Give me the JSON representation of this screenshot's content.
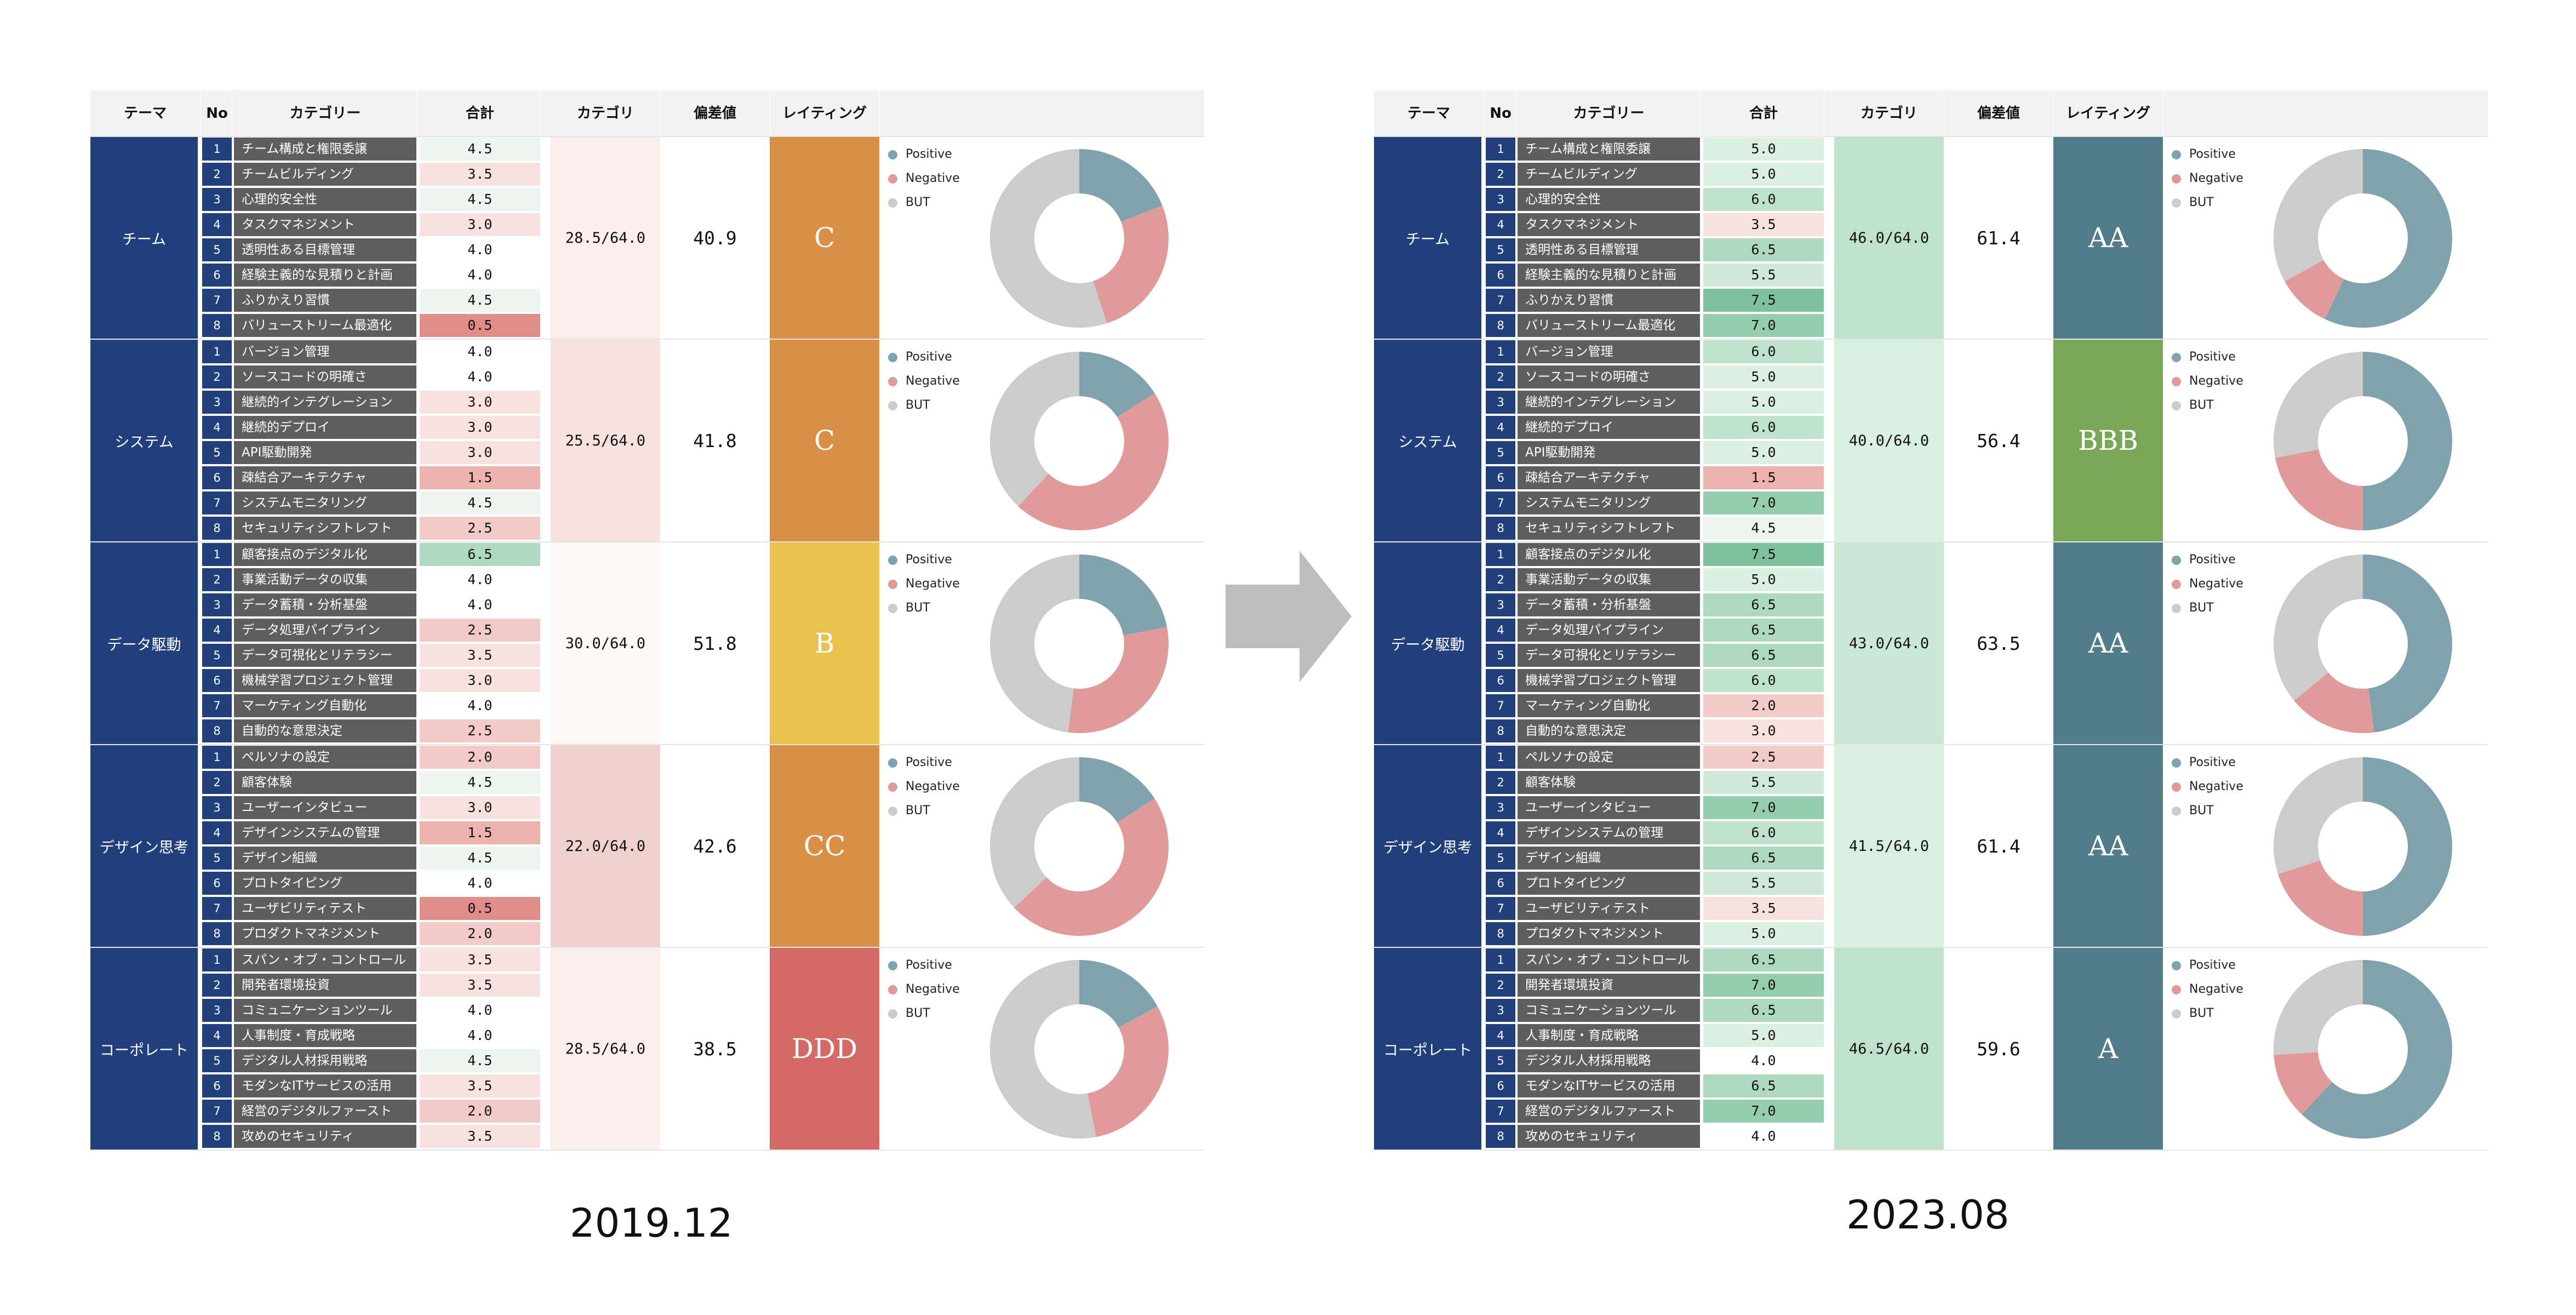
{
  "headers": [
    "テーマ",
    "No",
    "カテゴリー",
    "合計",
    "カテゴリ",
    "偏差値",
    "レイティング"
  ],
  "legend": [
    {
      "label": "Positive",
      "color": "#7fa2ad"
    },
    {
      "label": "Negative",
      "color": "#e09a99"
    },
    {
      "label": "BUT",
      "color": "#cccccc"
    }
  ],
  "colors": {
    "theme": "#213f7b",
    "category_bg": "#5e5e5e",
    "positive": "#7fa2ad",
    "negative": "#e09a99",
    "but": "#cccccc"
  },
  "chart_data": [
    {
      "type": "table",
      "label": "2019.12",
      "groups": [
        {
          "theme": "チーム",
          "category_total": "28.5/64.0",
          "deviation": "40.9",
          "rating": "C",
          "rating_color": "#d98f47",
          "items": [
            {
              "no": "1",
              "name": "チーム構成と権限委譲",
              "score": "4.5"
            },
            {
              "no": "2",
              "name": "チームビルディング",
              "score": "3.5"
            },
            {
              "no": "3",
              "name": "心理的安全性",
              "score": "4.5"
            },
            {
              "no": "4",
              "name": "タスクマネジメント",
              "score": "3.0"
            },
            {
              "no": "5",
              "name": "透明性ある目標管理",
              "score": "4.0"
            },
            {
              "no": "6",
              "name": "経験主義的な見積りと計画",
              "score": "4.0"
            },
            {
              "no": "7",
              "name": "ふりかえり習慣",
              "score": "4.5"
            },
            {
              "no": "8",
              "name": "バリューストリーム最適化",
              "score": "0.5"
            }
          ],
          "donut": {
            "positive": 0.19,
            "negative": 0.26,
            "but": 0.55
          }
        },
        {
          "theme": "システム",
          "category_total": "25.5/64.0",
          "deviation": "41.8",
          "rating": "C",
          "rating_color": "#d98f47",
          "items": [
            {
              "no": "1",
              "name": "バージョン管理",
              "score": "4.0"
            },
            {
              "no": "2",
              "name": "ソースコードの明確さ",
              "score": "4.0"
            },
            {
              "no": "3",
              "name": "継続的インテグレーション",
              "score": "3.0"
            },
            {
              "no": "4",
              "name": "継続的デプロイ",
              "score": "3.0"
            },
            {
              "no": "5",
              "name": "API駆動開発",
              "score": "3.0"
            },
            {
              "no": "6",
              "name": "疎結合アーキテクチャ",
              "score": "1.5"
            },
            {
              "no": "7",
              "name": "システムモニタリング",
              "score": "4.5"
            },
            {
              "no": "8",
              "name": "セキュリティシフトレフト",
              "score": "2.5"
            }
          ],
          "donut": {
            "positive": 0.16,
            "negative": 0.46,
            "but": 0.38
          }
        },
        {
          "theme": "データ駆動",
          "category_total": "30.0/64.0",
          "deviation": "51.8",
          "rating": "B",
          "rating_color": "#e8c24d",
          "items": [
            {
              "no": "1",
              "name": "顧客接点のデジタル化",
              "score": "6.5"
            },
            {
              "no": "2",
              "name": "事業活動データの収集",
              "score": "4.0"
            },
            {
              "no": "3",
              "name": "データ蓄積・分析基盤",
              "score": "4.0"
            },
            {
              "no": "4",
              "name": "データ処理パイプライン",
              "score": "2.5"
            },
            {
              "no": "5",
              "name": "データ可視化とリテラシー",
              "score": "3.5"
            },
            {
              "no": "6",
              "name": "機械学習プロジェクト管理",
              "score": "3.0"
            },
            {
              "no": "7",
              "name": "マーケティング自動化",
              "score": "4.0"
            },
            {
              "no": "8",
              "name": "自動的な意思決定",
              "score": "2.5"
            }
          ],
          "donut": {
            "positive": 0.22,
            "negative": 0.3,
            "but": 0.48
          }
        },
        {
          "theme": "デザイン思考",
          "category_total": "22.0/64.0",
          "deviation": "42.6",
          "rating": "CC",
          "rating_color": "#d98f47",
          "items": [
            {
              "no": "1",
              "name": "ペルソナの設定",
              "score": "2.0"
            },
            {
              "no": "2",
              "name": "顧客体験",
              "score": "4.5"
            },
            {
              "no": "3",
              "name": "ユーザーインタビュー",
              "score": "3.0"
            },
            {
              "no": "4",
              "name": "デザインシステムの管理",
              "score": "1.5"
            },
            {
              "no": "5",
              "name": "デザイン組織",
              "score": "4.5"
            },
            {
              "no": "6",
              "name": "プロトタイピング",
              "score": "4.0"
            },
            {
              "no": "7",
              "name": "ユーザビリティテスト",
              "score": "0.5"
            },
            {
              "no": "8",
              "name": "プロダクトマネジメント",
              "score": "2.0"
            }
          ],
          "donut": {
            "positive": 0.16,
            "negative": 0.47,
            "but": 0.37
          }
        },
        {
          "theme": "コーポレート",
          "category_total": "28.5/64.0",
          "deviation": "38.5",
          "rating": "DDD",
          "rating_color": "#d46a66",
          "items": [
            {
              "no": "1",
              "name": "スパン・オブ・コントロール",
              "score": "3.5"
            },
            {
              "no": "2",
              "name": "開発者環境投資",
              "score": "3.5"
            },
            {
              "no": "3",
              "name": "コミュニケーションツール",
              "score": "4.0"
            },
            {
              "no": "4",
              "name": "人事制度・育成戦略",
              "score": "4.0"
            },
            {
              "no": "5",
              "name": "デジタル人材採用戦略",
              "score": "4.5"
            },
            {
              "no": "6",
              "name": "モダンなITサービスの活用",
              "score": "3.5"
            },
            {
              "no": "7",
              "name": "経営のデジタルファースト",
              "score": "2.0"
            },
            {
              "no": "8",
              "name": "攻めのセキュリティ",
              "score": "3.5"
            }
          ],
          "donut": {
            "positive": 0.17,
            "negative": 0.3,
            "but": 0.53
          }
        }
      ]
    },
    {
      "type": "table",
      "label": "2023.08",
      "groups": [
        {
          "theme": "チーム",
          "category_total": "46.0/64.0",
          "deviation": "61.4",
          "rating": "AA",
          "rating_color": "#527c89",
          "items": [
            {
              "no": "1",
              "name": "チーム構成と権限委譲",
              "score": "5.0"
            },
            {
              "no": "2",
              "name": "チームビルディング",
              "score": "5.0"
            },
            {
              "no": "3",
              "name": "心理的安全性",
              "score": "6.0"
            },
            {
              "no": "4",
              "name": "タスクマネジメント",
              "score": "3.5"
            },
            {
              "no": "5",
              "name": "透明性ある目標管理",
              "score": "6.5"
            },
            {
              "no": "6",
              "name": "経験主義的な見積りと計画",
              "score": "5.5"
            },
            {
              "no": "7",
              "name": "ふりかえり習慣",
              "score": "7.5"
            },
            {
              "no": "8",
              "name": "バリューストリーム最適化",
              "score": "7.0"
            }
          ],
          "donut": {
            "positive": 0.57,
            "negative": 0.1,
            "but": 0.33
          }
        },
        {
          "theme": "システム",
          "category_total": "40.0/64.0",
          "deviation": "56.4",
          "rating": "BBB",
          "rating_color": "#78a857",
          "items": [
            {
              "no": "1",
              "name": "バージョン管理",
              "score": "6.0"
            },
            {
              "no": "2",
              "name": "ソースコードの明確さ",
              "score": "5.0"
            },
            {
              "no": "3",
              "name": "継続的インテグレーション",
              "score": "5.0"
            },
            {
              "no": "4",
              "name": "継続的デプロイ",
              "score": "6.0"
            },
            {
              "no": "5",
              "name": "API駆動開発",
              "score": "5.0"
            },
            {
              "no": "6",
              "name": "疎結合アーキテクチャ",
              "score": "1.5"
            },
            {
              "no": "7",
              "name": "システムモニタリング",
              "score": "7.0"
            },
            {
              "no": "8",
              "name": "セキュリティシフトレフト",
              "score": "4.5"
            }
          ],
          "donut": {
            "positive": 0.5,
            "negative": 0.22,
            "but": 0.28
          }
        },
        {
          "theme": "データ駆動",
          "category_total": "43.0/64.0",
          "deviation": "63.5",
          "rating": "AA",
          "rating_color": "#527c89",
          "items": [
            {
              "no": "1",
              "name": "顧客接点のデジタル化",
              "score": "7.5"
            },
            {
              "no": "2",
              "name": "事業活動データの収集",
              "score": "5.0"
            },
            {
              "no": "3",
              "name": "データ蓄積・分析基盤",
              "score": "6.5"
            },
            {
              "no": "4",
              "name": "データ処理パイプライン",
              "score": "6.5"
            },
            {
              "no": "5",
              "name": "データ可視化とリテラシー",
              "score": "6.5"
            },
            {
              "no": "6",
              "name": "機械学習プロジェクト管理",
              "score": "6.0"
            },
            {
              "no": "7",
              "name": "マーケティング自動化",
              "score": "2.0"
            },
            {
              "no": "8",
              "name": "自動的な意思決定",
              "score": "3.0"
            }
          ],
          "donut": {
            "positive": 0.48,
            "negative": 0.16,
            "but": 0.36
          }
        },
        {
          "theme": "デザイン思考",
          "category_total": "41.5/64.0",
          "deviation": "61.4",
          "rating": "AA",
          "rating_color": "#527c89",
          "items": [
            {
              "no": "1",
              "name": "ペルソナの設定",
              "score": "2.5"
            },
            {
              "no": "2",
              "name": "顧客体験",
              "score": "5.5"
            },
            {
              "no": "3",
              "name": "ユーザーインタビュー",
              "score": "7.0"
            },
            {
              "no": "4",
              "name": "デザインシステムの管理",
              "score": "6.0"
            },
            {
              "no": "5",
              "name": "デザイン組織",
              "score": "6.5"
            },
            {
              "no": "6",
              "name": "プロトタイピング",
              "score": "5.5"
            },
            {
              "no": "7",
              "name": "ユーザビリティテスト",
              "score": "3.5"
            },
            {
              "no": "8",
              "name": "プロダクトマネジメント",
              "score": "5.0"
            }
          ],
          "donut": {
            "positive": 0.5,
            "negative": 0.2,
            "but": 0.3
          }
        },
        {
          "theme": "コーポレート",
          "category_total": "46.5/64.0",
          "deviation": "59.6",
          "rating": "A",
          "rating_color": "#527c89",
          "items": [
            {
              "no": "1",
              "name": "スパン・オブ・コントロール",
              "score": "6.5"
            },
            {
              "no": "2",
              "name": "開発者環境投資",
              "score": "7.0"
            },
            {
              "no": "3",
              "name": "コミュニケーションツール",
              "score": "6.5"
            },
            {
              "no": "4",
              "name": "人事制度・育成戦略",
              "score": "5.0"
            },
            {
              "no": "5",
              "name": "デジタル人材採用戦略",
              "score": "4.0"
            },
            {
              "no": "6",
              "name": "モダンなITサービスの活用",
              "score": "6.5"
            },
            {
              "no": "7",
              "name": "経営のデジタルファースト",
              "score": "7.0"
            },
            {
              "no": "8",
              "name": "攻めのセキュリティ",
              "score": "4.0"
            }
          ],
          "donut": {
            "positive": 0.62,
            "negative": 0.12,
            "but": 0.26
          }
        }
      ]
    }
  ]
}
